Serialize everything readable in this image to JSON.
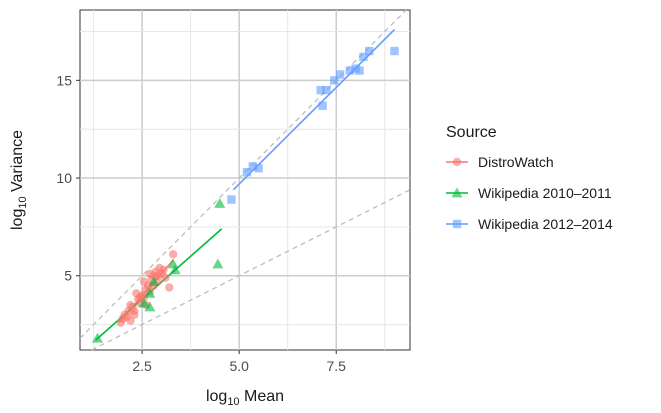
{
  "chart_data": {
    "type": "scatter",
    "xlabel": {
      "base": "log",
      "sub": "10",
      "rest": " Mean"
    },
    "ylabel": {
      "base": "log",
      "sub": "10",
      "rest": " Variance"
    },
    "xlim": [
      0.9,
      9.4
    ],
    "ylim": [
      1.2,
      18.6
    ],
    "x_ticks": [
      2.5,
      5.0,
      7.5
    ],
    "x_tick_labels": [
      "2.5",
      "5.0",
      "7.5"
    ],
    "y_ticks": [
      5,
      10,
      15
    ],
    "y_tick_labels": [
      "5",
      "10",
      "15"
    ],
    "grid": true,
    "legend": {
      "title": "Source",
      "placement": "right"
    },
    "reference_lines": [
      {
        "style": "dashed",
        "slope": 2,
        "intercept": 0
      },
      {
        "style": "dashed",
        "slope": 1,
        "intercept": 0
      }
    ],
    "series": [
      {
        "name": "DistroWatch",
        "color": "#F8766D",
        "marker": "circle",
        "fit": {
          "x": [
            1.9,
            3.3
          ],
          "y": [
            2.6,
            5.8
          ]
        },
        "points": [
          [
            1.95,
            2.6
          ],
          [
            2.0,
            2.8
          ],
          [
            2.05,
            3.0
          ],
          [
            2.1,
            2.9
          ],
          [
            2.15,
            3.2
          ],
          [
            2.2,
            3.5
          ],
          [
            2.25,
            3.4
          ],
          [
            2.3,
            3.2
          ],
          [
            2.35,
            4.1
          ],
          [
            2.4,
            3.8
          ],
          [
            2.45,
            3.6
          ],
          [
            2.5,
            4.0
          ],
          [
            2.55,
            3.9
          ],
          [
            2.6,
            4.3
          ],
          [
            2.65,
            4.5
          ],
          [
            2.7,
            4.2
          ],
          [
            2.75,
            4.8
          ],
          [
            2.8,
            5.0
          ],
          [
            2.85,
            5.2
          ],
          [
            2.9,
            4.7
          ],
          [
            2.95,
            5.4
          ],
          [
            3.0,
            5.1
          ],
          [
            3.1,
            4.9
          ],
          [
            3.2,
            4.4
          ],
          [
            3.3,
            6.1
          ],
          [
            2.7,
            5.1
          ],
          [
            2.55,
            4.7
          ],
          [
            2.45,
            3.9
          ],
          [
            2.3,
            3.0
          ],
          [
            2.8,
            4.5
          ],
          [
            3.05,
            5.3
          ],
          [
            2.6,
            3.5
          ],
          [
            2.2,
            2.7
          ],
          [
            2.9,
            5.0
          ]
        ]
      },
      {
        "name": "Wikipedia 2010–2011",
        "color": "#00BA38",
        "marker": "triangle",
        "fit": {
          "x": [
            1.3,
            4.55
          ],
          "y": [
            1.7,
            7.4
          ]
        },
        "points": [
          [
            1.35,
            1.8
          ],
          [
            2.55,
            3.6
          ],
          [
            2.7,
            3.4
          ],
          [
            2.7,
            4.1
          ],
          [
            2.8,
            4.7
          ],
          [
            3.3,
            5.6
          ],
          [
            3.35,
            5.3
          ],
          [
            4.45,
            5.6
          ],
          [
            4.5,
            8.7
          ]
        ]
      },
      {
        "name": "Wikipedia 2012–2014",
        "color": "#619CFF",
        "marker": "square",
        "fit": {
          "x": [
            4.85,
            9.0
          ],
          "y": [
            9.4,
            17.6
          ]
        },
        "points": [
          [
            4.8,
            8.9
          ],
          [
            5.2,
            10.3
          ],
          [
            5.35,
            10.6
          ],
          [
            5.5,
            10.5
          ],
          [
            7.1,
            14.5
          ],
          [
            7.15,
            13.7
          ],
          [
            7.25,
            14.5
          ],
          [
            7.45,
            15.0
          ],
          [
            7.6,
            15.3
          ],
          [
            7.85,
            15.5
          ],
          [
            8.0,
            15.6
          ],
          [
            8.1,
            15.5
          ],
          [
            8.2,
            16.2
          ],
          [
            8.35,
            16.5
          ],
          [
            9.0,
            16.5
          ]
        ]
      }
    ]
  }
}
